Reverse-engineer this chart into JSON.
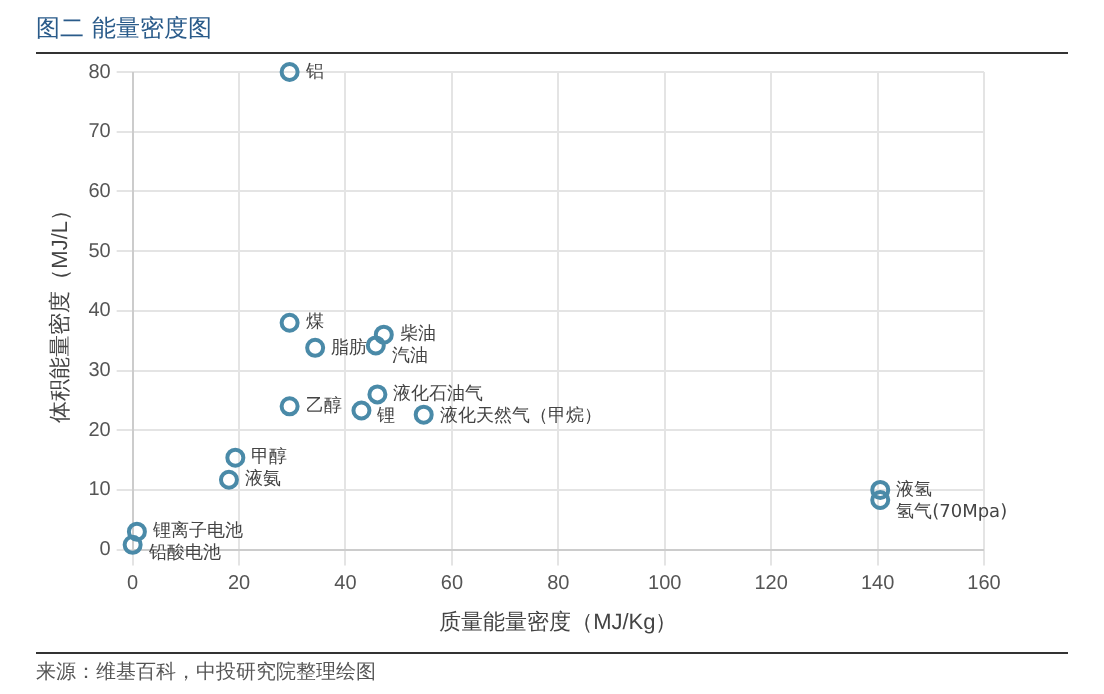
{
  "chart_data": {
    "type": "scatter",
    "title": "图二 能量密度图",
    "xlabel": "质量能量密度（MJ/Kg）",
    "ylabel": "体积能量密度（MJ/L）",
    "x": [
      29.5,
      29.5,
      34.3,
      47.2,
      45.7,
      46,
      29.5,
      43,
      54.7,
      19.3,
      18.1,
      0.8,
      0,
      140.5,
      140.5
    ],
    "values": [
      80,
      38,
      33.8,
      36,
      34.2,
      26,
      24,
      23.3,
      22.6,
      15.4,
      11.7,
      3,
      0.8,
      10,
      8.3
    ],
    "color": "#4a8aa8",
    "marker": "circle",
    "grid": true,
    "legend": false,
    "xlim": [
      0,
      160
    ],
    "xticks": [
      0,
      20,
      40,
      60,
      80,
      100,
      120,
      140,
      160
    ],
    "ylim": [
      0,
      80
    ],
    "yticks": [
      0,
      10,
      20,
      30,
      40,
      50,
      60,
      70,
      80
    ],
    "annotations": [
      {
        "text": "铝",
        "x": 29.5,
        "y": 80
      },
      {
        "text": "煤",
        "x": 29.5,
        "y": 38
      },
      {
        "text": "脂肪",
        "x": 34.3,
        "y": 33.8
      },
      {
        "text": "柴油",
        "x": 47.2,
        "y": 36
      },
      {
        "text": "汽油",
        "x": 45.7,
        "y": 34.2
      },
      {
        "text": "液化石油气",
        "x": 46,
        "y": 26
      },
      {
        "text": "乙醇",
        "x": 29.5,
        "y": 24
      },
      {
        "text": "锂",
        "x": 43,
        "y": 23.3
      },
      {
        "text": "液化天然气（甲烷）",
        "x": 54.7,
        "y": 22.6
      },
      {
        "text": "甲醇",
        "x": 19.3,
        "y": 15.4
      },
      {
        "text": "液氨",
        "x": 18.1,
        "y": 11.7
      },
      {
        "text": "锂离子电池",
        "x": 0.8,
        "y": 3
      },
      {
        "text": "铅酸电池",
        "x": 0,
        "y": 0.8
      },
      {
        "text": "液氢",
        "x": 140.5,
        "y": 10
      },
      {
        "text": "氢气(70Mpa)",
        "x": 140.5,
        "y": 8.3
      },
      "来源：维基百科，中投研究院整理绘图"
    ]
  }
}
